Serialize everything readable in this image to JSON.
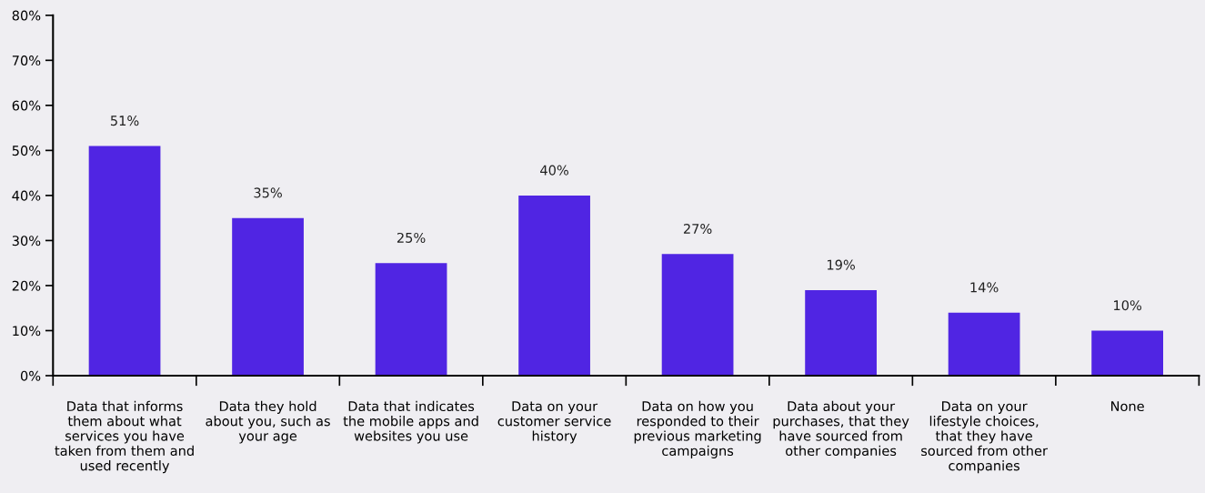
{
  "chart_data": {
    "type": "bar",
    "categories": [
      "Data that informs\nthem about what\nservices you have\ntaken from them and\nused recently",
      "Data they hold\nabout you, such as\nyour age",
      "Data that indicates\nthe mobile apps and\nwebsites you use",
      "Data on your\ncustomer service\nhistory",
      "Data on how you\nresponded to their\nprevious marketing\ncampaigns",
      "Data about your\npurchases, that they\nhave sourced from\nother companies",
      "Data on your\nlifestyle choices,\nthat they have\nsourced from other\ncompanies",
      "None"
    ],
    "values": [
      51,
      35,
      25,
      40,
      27,
      19,
      14,
      10
    ],
    "value_labels": [
      "51%",
      "35%",
      "25%",
      "40%",
      "27%",
      "19%",
      "14%",
      "10%"
    ],
    "color": "#5025e3",
    "ylim": [
      0,
      80
    ],
    "yticks": [
      {
        "value": 0,
        "label": "0%"
      },
      {
        "value": 10,
        "label": "10%"
      },
      {
        "value": 20,
        "label": "20%"
      },
      {
        "value": 30,
        "label": "30%"
      },
      {
        "value": 40,
        "label": "40%"
      },
      {
        "value": 50,
        "label": "50%"
      },
      {
        "value": 60,
        "label": "60%"
      },
      {
        "value": 70,
        "label": "70%"
      },
      {
        "value": 80,
        "label": "80%"
      }
    ],
    "grid": false,
    "legend": false
  }
}
